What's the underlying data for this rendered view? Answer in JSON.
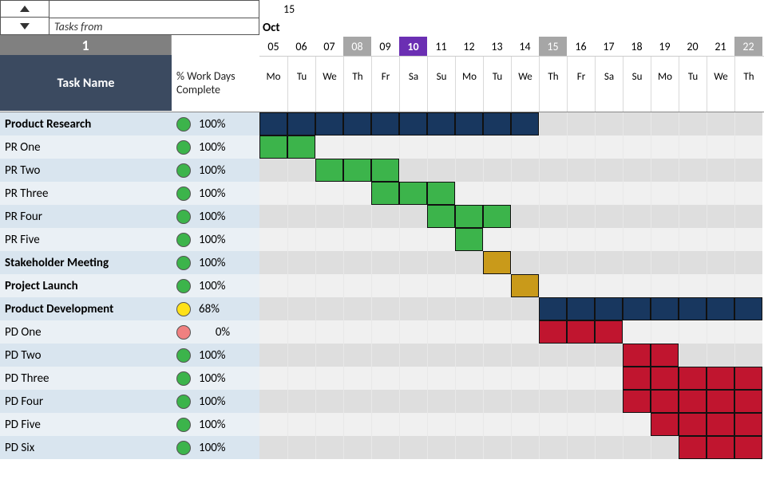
{
  "header": {
    "tasks_from_label": "Tasks from",
    "counter": "1",
    "task_name_label": "Task Name",
    "work_days_label": "% Work Days Complete",
    "top_number": "15",
    "month_label": "Oct"
  },
  "colors": {
    "header_bg": "#3b4a60",
    "counter_bg": "#808080",
    "weekend_bg": "#a6a6a6",
    "highlight_bg": "#6b2fb3",
    "row_light": "#eaf0f5",
    "row_dark": "#d9e5ef",
    "gantt_odd": "#f0f0f0",
    "gantt_even": "#dedede",
    "status_green": "#3cb44b",
    "status_yellow": "#ffe119",
    "status_red": "#f08080",
    "bar_navy": "#18375f",
    "bar_green": "#3cb44b",
    "bar_gold": "#c99a1a",
    "bar_red": "#c0152f"
  },
  "dates": [
    {
      "num": "05",
      "dow": "Mo",
      "wknd": false,
      "hl": false
    },
    {
      "num": "06",
      "dow": "Tu",
      "wknd": false,
      "hl": false
    },
    {
      "num": "07",
      "dow": "We",
      "wknd": false,
      "hl": false
    },
    {
      "num": "08",
      "dow": "Th",
      "wknd": true,
      "hl": false
    },
    {
      "num": "09",
      "dow": "Fr",
      "wknd": false,
      "hl": false
    },
    {
      "num": "10",
      "dow": "Sa",
      "wknd": false,
      "hl": true
    },
    {
      "num": "11",
      "dow": "Su",
      "wknd": false,
      "hl": false
    },
    {
      "num": "12",
      "dow": "Mo",
      "wknd": false,
      "hl": false
    },
    {
      "num": "13",
      "dow": "Tu",
      "wknd": false,
      "hl": false
    },
    {
      "num": "14",
      "dow": "We",
      "wknd": false,
      "hl": false
    },
    {
      "num": "15",
      "dow": "Th",
      "wknd": true,
      "hl": false
    },
    {
      "num": "16",
      "dow": "Fr",
      "wknd": false,
      "hl": false
    },
    {
      "num": "17",
      "dow": "Sa",
      "wknd": false,
      "hl": false
    },
    {
      "num": "18",
      "dow": "Su",
      "wknd": false,
      "hl": false
    },
    {
      "num": "19",
      "dow": "Mo",
      "wknd": false,
      "hl": false
    },
    {
      "num": "20",
      "dow": "Tu",
      "wknd": false,
      "hl": false
    },
    {
      "num": "21",
      "dow": "We",
      "wknd": false,
      "hl": false
    },
    {
      "num": "22",
      "dow": "Th",
      "wknd": true,
      "hl": false
    }
  ],
  "tasks": [
    {
      "name": "Product Research",
      "bold": true,
      "status": "green",
      "pct": "100%",
      "bar_color": "bar_navy",
      "start": 0,
      "end": 9
    },
    {
      "name": "PR One",
      "bold": false,
      "status": "green",
      "pct": "100%",
      "bar_color": "bar_green",
      "start": 0,
      "end": 1
    },
    {
      "name": "PR Two",
      "bold": false,
      "status": "green",
      "pct": "100%",
      "bar_color": "bar_green",
      "start": 2,
      "end": 4
    },
    {
      "name": "PR Three",
      "bold": false,
      "status": "green",
      "pct": "100%",
      "bar_color": "bar_green",
      "start": 4,
      "end": 6
    },
    {
      "name": "PR Four",
      "bold": false,
      "status": "green",
      "pct": "100%",
      "bar_color": "bar_green",
      "start": 6,
      "end": 8
    },
    {
      "name": "PR Five",
      "bold": false,
      "status": "green",
      "pct": "100%",
      "bar_color": "bar_green",
      "start": 7,
      "end": 7
    },
    {
      "name": "Stakeholder Meeting",
      "bold": true,
      "status": "green",
      "pct": "100%",
      "bar_color": "bar_gold",
      "start": 8,
      "end": 8
    },
    {
      "name": "Project Launch",
      "bold": true,
      "status": "green",
      "pct": "100%",
      "bar_color": "bar_gold",
      "start": 9,
      "end": 9
    },
    {
      "name": "Product Development",
      "bold": true,
      "status": "yellow",
      "pct": "68%",
      "bar_color": "bar_navy",
      "start": 10,
      "end": 17
    },
    {
      "name": "PD One",
      "bold": false,
      "status": "red",
      "pct": "0%",
      "pct_center": true,
      "bar_color": "bar_red",
      "start": 10,
      "end": 12
    },
    {
      "name": "PD Two",
      "bold": false,
      "status": "green",
      "pct": "100%",
      "bar_color": "bar_red",
      "start": 13,
      "end": 14
    },
    {
      "name": "PD Three",
      "bold": false,
      "status": "green",
      "pct": "100%",
      "bar_color": "bar_red",
      "start": 13,
      "end": 17
    },
    {
      "name": "PD Four",
      "bold": false,
      "status": "green",
      "pct": "100%",
      "bar_color": "bar_red",
      "start": 13,
      "end": 17
    },
    {
      "name": "PD Five",
      "bold": false,
      "status": "green",
      "pct": "100%",
      "bar_color": "bar_red",
      "start": 14,
      "end": 17
    },
    {
      "name": "PD Six",
      "bold": false,
      "status": "green",
      "pct": "100%",
      "bar_color": "bar_red",
      "start": 15,
      "end": 17
    }
  ]
}
